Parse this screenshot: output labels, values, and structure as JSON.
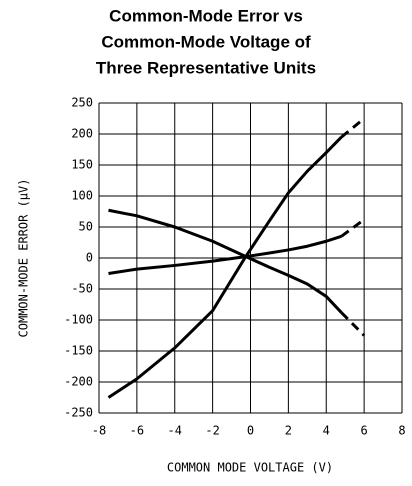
{
  "chart_data": {
    "type": "line",
    "title": [
      "Common-Mode Error vs",
      "Common-Mode Voltage of",
      "Three Representative Units"
    ],
    "x_label": "COMMON MODE VOLTAGE (V)",
    "y_label": "COMMON-MODE ERROR (μV)",
    "x": [
      -7.5,
      -6,
      -4,
      -2,
      -0.3,
      1,
      2,
      3,
      4,
      4.8,
      6
    ],
    "series": [
      {
        "color": "#000000",
        "values": [
          -225,
          -195,
          -145,
          -85,
          0,
          60,
          105,
          140,
          170,
          195,
          225
        ]
      },
      {
        "color": "#000000",
        "values": [
          77,
          68,
          50,
          27,
          3,
          -15,
          -28,
          -42,
          -62,
          -88,
          -125
        ]
      },
      {
        "color": "#000000",
        "values": [
          -25,
          -18,
          -12,
          -5,
          2,
          8,
          13,
          19,
          27,
          35,
          62
        ]
      }
    ],
    "dash_from_x": 4.8,
    "xlim": [
      -8,
      8
    ],
    "xticks": [
      -8,
      -6,
      -4,
      -2,
      0,
      2,
      4,
      6,
      8
    ],
    "ylim": [
      -250,
      250
    ],
    "yticks": [
      -250,
      -200,
      -150,
      -100,
      -50,
      0,
      50,
      100,
      150,
      200,
      250
    ],
    "grid": true
  }
}
